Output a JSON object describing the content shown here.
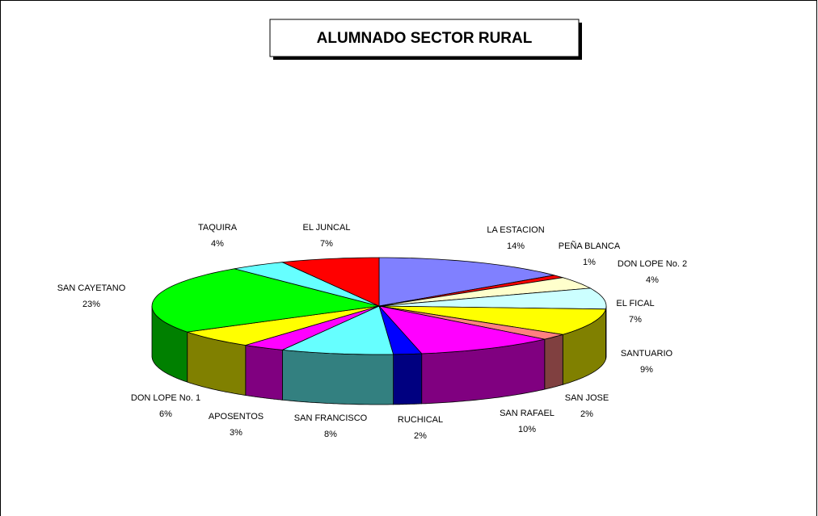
{
  "chart_data": {
    "type": "pie3d",
    "title": "ALUMNADO SECTOR RURAL",
    "categories": [
      "LA ESTACION",
      "PEÑA BLANCA",
      "DON LOPE No. 2",
      "EL FICAL",
      "SANTUARIO",
      "SAN JOSE",
      "SAN RAFAEL",
      "RUCHICAL",
      "SAN FRANCISCO",
      "APOSENTOS",
      "DON LOPE No. 1",
      "SAN CAYETANO",
      "TAQUIRA",
      "EL JUNCAL"
    ],
    "values": [
      14,
      1,
      4,
      7,
      9,
      2,
      10,
      2,
      8,
      3,
      6,
      23,
      4,
      7
    ],
    "value_labels": [
      "14%",
      "1%",
      "4%",
      "7%",
      "9%",
      "2%",
      "10%",
      "2%",
      "8%",
      "3%",
      "6%",
      "23%",
      "4%",
      "7%"
    ],
    "colors": [
      "#8080ff",
      "#ff0000",
      "#ffffcc",
      "#ccffff",
      "#ffff00",
      "#ff8080",
      "#ff00ff",
      "#0000ff",
      "#66ffff",
      "#ff00ff",
      "#ffff00",
      "#00ff00",
      "#66ffff",
      "#ff0000"
    ]
  }
}
